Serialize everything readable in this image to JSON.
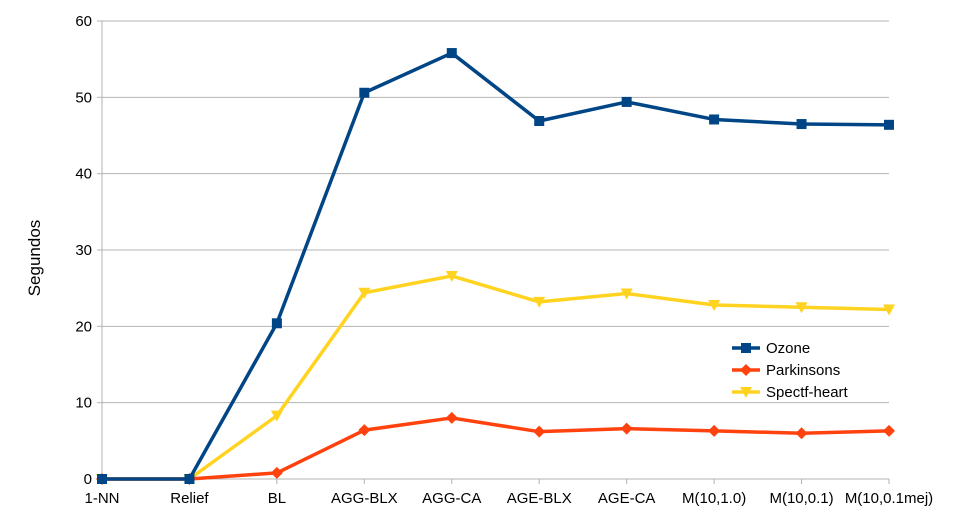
{
  "chart_data": {
    "type": "line",
    "title": "",
    "xlabel": "",
    "ylabel": "Segundos",
    "ylim": [
      0,
      60
    ],
    "yticks": [
      0,
      10,
      20,
      30,
      40,
      50,
      60
    ],
    "grid": true,
    "legend_position": "right",
    "categories": [
      "1-NN",
      "Relief",
      "BL",
      "AGG-BLX",
      "AGG-CA",
      "AGE-BLX",
      "AGE-CA",
      "M(10,1.0)",
      "M(10,0.1)",
      "M(10,0.1mej)"
    ],
    "series": [
      {
        "name": "Ozone",
        "color": "#004586",
        "marker": "square",
        "values": [
          0.0,
          0.0,
          20.4,
          50.6,
          55.8,
          46.9,
          49.4,
          47.1,
          46.5,
          46.4
        ]
      },
      {
        "name": "Parkinsons",
        "color": "#ff420e",
        "marker": "diamond",
        "values": [
          0.0,
          0.0,
          0.8,
          6.4,
          8.0,
          6.2,
          6.6,
          6.3,
          6.0,
          6.3
        ]
      },
      {
        "name": "Spectf-heart",
        "color": "#ffd320",
        "marker": "triangle-down",
        "values": [
          0.0,
          0.0,
          8.3,
          24.4,
          26.6,
          23.2,
          24.3,
          22.8,
          22.5,
          22.2
        ]
      }
    ]
  }
}
